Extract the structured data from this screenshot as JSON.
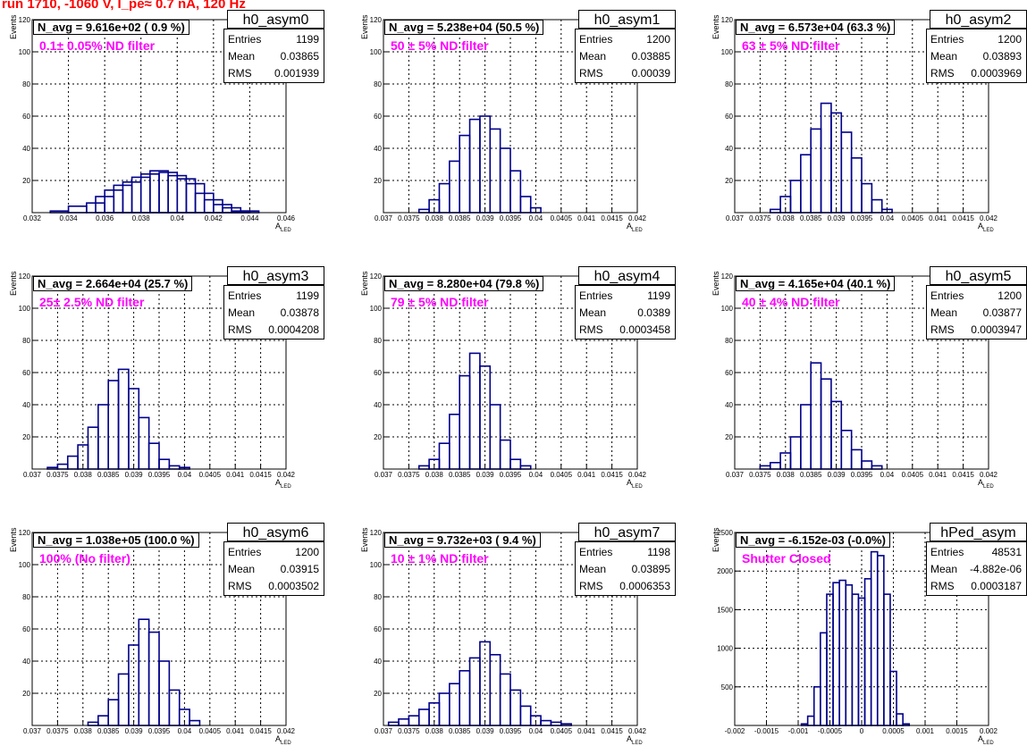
{
  "title": "run 1710, -1060 V, I_pe≈ 0.7 nA, 120 Hz",
  "chart_data": [
    {
      "type": "bar",
      "name": "h0_asym0",
      "n_avg": "N_avg = 9.616e+02 ( 0.9 %)",
      "filter": "0.1± 0.05% ND filter",
      "stats": {
        "entries": "1199",
        "mean": "0.03865",
        "rms": "0.001939"
      },
      "xlabel": "A",
      "xlabel_sub": "LED",
      "ylabel": "Events",
      "xlim": [
        0.032,
        0.046
      ],
      "ylim": [
        0,
        120
      ],
      "xticks": [
        "0.032",
        "0.034",
        "0.036",
        "0.038",
        "0.04",
        "0.042",
        "0.044",
        "0.046"
      ],
      "yticks": [
        "20",
        "40",
        "60",
        "80",
        "100",
        "120"
      ],
      "x": [
        0.0335,
        0.0345,
        0.0355,
        0.036,
        0.0365,
        0.037,
        0.0375,
        0.038,
        0.0385,
        0.039,
        0.0395,
        0.04,
        0.0405,
        0.041,
        0.0415,
        0.042,
        0.0425,
        0.043,
        0.0435,
        0.044
      ],
      "values": [
        1,
        4,
        6,
        10,
        14,
        17,
        19,
        22,
        24,
        26,
        25,
        23,
        21,
        18,
        12,
        8,
        5,
        3,
        1,
        1
      ]
    },
    {
      "type": "bar",
      "name": "h0_asym1",
      "n_avg": "N_avg = 5.238e+04 (50.5 %)",
      "filter": "50 ± 5% ND filter",
      "stats": {
        "entries": "1200",
        "mean": "0.03885",
        "rms": "0.00039"
      },
      "xlabel": "A",
      "xlabel_sub": "LED",
      "ylabel": "Events",
      "xlim": [
        0.037,
        0.042
      ],
      "ylim": [
        0,
        120
      ],
      "xticks": [
        "0.037",
        "0.0375",
        "0.038",
        "0.0385",
        "0.039",
        "0.0395",
        "0.04",
        "0.0405",
        "0.041",
        "0.0415",
        "0.042"
      ],
      "yticks": [
        "20",
        "40",
        "60",
        "80",
        "100",
        "120"
      ],
      "x": [
        0.0378,
        0.038,
        0.0382,
        0.0384,
        0.0386,
        0.0388,
        0.039,
        0.0392,
        0.0394,
        0.0396,
        0.0398,
        0.04
      ],
      "values": [
        2,
        8,
        18,
        32,
        48,
        58,
        60,
        52,
        40,
        26,
        10,
        3
      ]
    },
    {
      "type": "bar",
      "name": "h0_asym2",
      "n_avg": "N_avg = 6.573e+04 (63.3 %)",
      "filter": "63 ± 5% ND filter",
      "stats": {
        "entries": "1200",
        "mean": "0.03893",
        "rms": "0.0003969"
      },
      "xlabel": "A",
      "xlabel_sub": "LED",
      "ylabel": "Events",
      "xlim": [
        0.037,
        0.042
      ],
      "ylim": [
        0,
        120
      ],
      "xticks": [
        "0.037",
        "0.0375",
        "0.038",
        "0.0385",
        "0.039",
        "0.0395",
        "0.04",
        "0.0405",
        "0.041",
        "0.0415",
        "0.042"
      ],
      "yticks": [
        "20",
        "40",
        "60",
        "80",
        "100",
        "120"
      ],
      "x": [
        0.0378,
        0.038,
        0.0382,
        0.0384,
        0.0386,
        0.0388,
        0.039,
        0.0392,
        0.0394,
        0.0396,
        0.0398,
        0.04
      ],
      "values": [
        2,
        10,
        20,
        36,
        52,
        68,
        62,
        50,
        34,
        18,
        8,
        2
      ]
    },
    {
      "type": "bar",
      "name": "h0_asym3",
      "n_avg": "N_avg = 2.664e+04 (25.7 %)",
      "filter": "25± 2.5% ND filter",
      "stats": {
        "entries": "1199",
        "mean": "0.03878",
        "rms": "0.0004208"
      },
      "xlabel": "A",
      "xlabel_sub": "LED",
      "ylabel": "Events",
      "xlim": [
        0.037,
        0.042
      ],
      "ylim": [
        0,
        120
      ],
      "xticks": [
        "0.037",
        "0.0375",
        "0.038",
        "0.0385",
        "0.039",
        "0.0395",
        "0.04",
        "0.0405",
        "0.041",
        "0.0415",
        "0.042"
      ],
      "yticks": [
        "20",
        "40",
        "60",
        "80",
        "100",
        "120"
      ],
      "x": [
        0.0374,
        0.0376,
        0.0378,
        0.038,
        0.0382,
        0.0384,
        0.0386,
        0.0388,
        0.039,
        0.0392,
        0.0394,
        0.0396,
        0.0398,
        0.04
      ],
      "values": [
        1,
        3,
        8,
        15,
        26,
        40,
        55,
        62,
        50,
        32,
        16,
        6,
        2,
        1
      ]
    },
    {
      "type": "bar",
      "name": "h0_asym4",
      "n_avg": "N_avg = 8.280e+04 (79.8 %)",
      "filter": "79 ± 5% ND filter",
      "stats": {
        "entries": "1199",
        "mean": "0.0389",
        "rms": "0.0003458"
      },
      "xlabel": "A",
      "xlabel_sub": "LED",
      "ylabel": "Events",
      "xlim": [
        0.037,
        0.042
      ],
      "ylim": [
        0,
        120
      ],
      "xticks": [
        "0.037",
        "0.0375",
        "0.038",
        "0.0385",
        "0.039",
        "0.0395",
        "0.04",
        "0.0405",
        "0.041",
        "0.0415",
        "0.042"
      ],
      "yticks": [
        "20",
        "40",
        "60",
        "80",
        "100",
        "120"
      ],
      "x": [
        0.0378,
        0.038,
        0.0382,
        0.0384,
        0.0386,
        0.0388,
        0.039,
        0.0392,
        0.0394,
        0.0396,
        0.0398
      ],
      "values": [
        2,
        6,
        16,
        34,
        58,
        72,
        64,
        40,
        18,
        6,
        2
      ]
    },
    {
      "type": "bar",
      "name": "h0_asym5",
      "n_avg": "N_avg = 4.165e+04 (40.1 %)",
      "filter": "40 ± 4% ND filter",
      "stats": {
        "entries": "1200",
        "mean": "0.03877",
        "rms": "0.0003947"
      },
      "xlabel": "A",
      "xlabel_sub": "LED",
      "ylabel": "Events",
      "xlim": [
        0.037,
        0.042
      ],
      "ylim": [
        0,
        120
      ],
      "xticks": [
        "0.037",
        "0.0375",
        "0.038",
        "0.0385",
        "0.039",
        "0.0395",
        "0.04",
        "0.0405",
        "0.041",
        "0.0415",
        "0.042"
      ],
      "yticks": [
        "20",
        "40",
        "60",
        "80",
        "100",
        "120"
      ],
      "x": [
        0.0376,
        0.0378,
        0.038,
        0.0382,
        0.0384,
        0.0386,
        0.0388,
        0.039,
        0.0392,
        0.0394,
        0.0396,
        0.0398
      ],
      "values": [
        2,
        4,
        10,
        20,
        40,
        66,
        56,
        42,
        24,
        12,
        5,
        2
      ]
    },
    {
      "type": "bar",
      "name": "h0_asym6",
      "n_avg": "N_avg = 1.038e+05 (100.0 %)",
      "filter": "100% (No filter)",
      "stats": {
        "entries": "1200",
        "mean": "0.03915",
        "rms": "0.0003502"
      },
      "xlabel": "A",
      "xlabel_sub": "LED",
      "ylabel": "Events",
      "xlim": [
        0.037,
        0.042
      ],
      "ylim": [
        0,
        120
      ],
      "xticks": [
        "0.037",
        "0.0375",
        "0.038",
        "0.0385",
        "0.039",
        "0.0395",
        "0.04",
        "0.0405",
        "0.041",
        "0.0415",
        "0.042"
      ],
      "yticks": [
        "20",
        "40",
        "60",
        "80",
        "100",
        "120"
      ],
      "x": [
        0.0382,
        0.0384,
        0.0386,
        0.0388,
        0.039,
        0.0392,
        0.0394,
        0.0396,
        0.0398,
        0.04,
        0.0402
      ],
      "values": [
        2,
        6,
        16,
        32,
        50,
        66,
        58,
        40,
        22,
        10,
        3
      ]
    },
    {
      "type": "bar",
      "name": "h0_asym7",
      "n_avg": "N_avg = 9.732e+03 ( 9.4 %)",
      "filter": "10 ± 1% ND filter",
      "stats": {
        "entries": "1198",
        "mean": "0.03895",
        "rms": "0.0006353"
      },
      "xlabel": "A",
      "xlabel_sub": "LED",
      "ylabel": "Events",
      "xlim": [
        0.037,
        0.042
      ],
      "ylim": [
        0,
        120
      ],
      "xticks": [
        "0.037",
        "0.0375",
        "0.038",
        "0.0385",
        "0.039",
        "0.0395",
        "0.04",
        "0.0405",
        "0.041",
        "0.0415",
        "0.042"
      ],
      "yticks": [
        "20",
        "40",
        "60",
        "80",
        "100",
        "120"
      ],
      "x": [
        0.0372,
        0.0374,
        0.0376,
        0.0378,
        0.038,
        0.0382,
        0.0384,
        0.0386,
        0.0388,
        0.039,
        0.0392,
        0.0394,
        0.0396,
        0.0398,
        0.04,
        0.0402,
        0.0404,
        0.0406
      ],
      "values": [
        2,
        4,
        6,
        10,
        14,
        20,
        26,
        34,
        42,
        52,
        44,
        32,
        22,
        12,
        6,
        3,
        2,
        1
      ]
    },
    {
      "type": "bar",
      "name": "hPed_asym",
      "n_avg": "N_avg = -6.152e-03 (-0.0%)",
      "filter": "Shutter Closed",
      "stats": {
        "entries": "48531",
        "mean": "-4.882e-06",
        "rms": "0.0003187"
      },
      "xlabel": "A",
      "xlabel_sub": "LED",
      "ylabel": "Events",
      "xlim": [
        -0.002,
        0.002
      ],
      "ylim": [
        0,
        2500
      ],
      "xticks": [
        "-0.002",
        "-0.0015",
        "-0.001",
        "-0.0005",
        "0",
        "0.0005",
        "0.001",
        "0.0015",
        "0.002"
      ],
      "yticks": [
        "500",
        "1000",
        "1500",
        "2000",
        "2500"
      ],
      "x": [
        -0.0009,
        -0.0008,
        -0.0007,
        -0.0006,
        -0.0005,
        -0.0004,
        -0.0003,
        -0.0002,
        -0.0001,
        0,
        0.0001,
        0.0002,
        0.0003,
        0.0004,
        0.0005,
        0.0006,
        0.0007
      ],
      "values": [
        20,
        120,
        500,
        1200,
        1700,
        1850,
        1880,
        1820,
        1700,
        1650,
        1900,
        2250,
        2200,
        1700,
        700,
        150,
        20
      ]
    }
  ]
}
